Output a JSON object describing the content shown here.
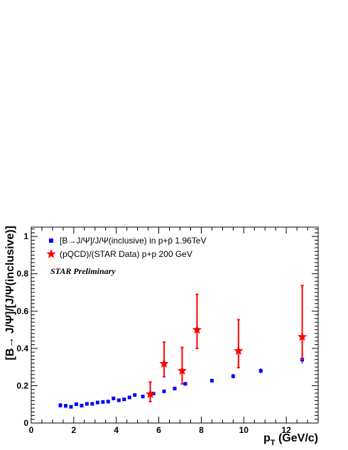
{
  "chart_data": {
    "type": "scatter",
    "title": "",
    "xlabel_main": "p",
    "xlabel_sub": "T",
    "xlabel_unit": " (GeV/c)",
    "ylabel": "[B→ J/Ψ]/[J/Ψ(inclusive)]",
    "xlim": [
      0,
      13.5
    ],
    "ylim": [
      0,
      1.05
    ],
    "x_ticks": [
      0,
      2,
      4,
      6,
      8,
      10,
      12
    ],
    "y_ticks": [
      0,
      0.2,
      0.4,
      0.6,
      0.8,
      1
    ],
    "x_tick_labels": [
      "0",
      "2",
      "4",
      "6",
      "8",
      "10",
      "12"
    ],
    "y_tick_labels": [
      "0",
      "0.2",
      "0.4",
      "0.6",
      "0.8",
      "1"
    ],
    "grid": false,
    "legend_position": "top-left",
    "annotation": "STAR Preliminary",
    "series": [
      {
        "name": "[B→J/Ψ]/J/Ψ(inclusive) in p+p̄ 1.96TeV",
        "marker": "square",
        "color": "#0000ff",
        "x": [
          1.37,
          1.62,
          1.87,
          2.12,
          2.37,
          2.62,
          2.87,
          3.12,
          3.37,
          3.62,
          3.87,
          4.12,
          4.37,
          4.62,
          4.87,
          5.25,
          5.75,
          6.25,
          6.75,
          7.25,
          8.5,
          9.5,
          10.8,
          12.75
        ],
        "y": [
          0.095,
          0.092,
          0.087,
          0.101,
          0.093,
          0.103,
          0.103,
          0.11,
          0.113,
          0.115,
          0.132,
          0.122,
          0.127,
          0.137,
          0.15,
          0.142,
          0.158,
          0.17,
          0.185,
          0.21,
          0.227,
          0.251,
          0.28,
          0.34
        ],
        "yerr": [
          0.012,
          0.01,
          0.008,
          0.01,
          0.007,
          0.006,
          0.006,
          0.006,
          0.006,
          0.006,
          0.006,
          0.006,
          0.006,
          0.006,
          0.006,
          0.006,
          0.006,
          0.006,
          0.006,
          0.007,
          0.008,
          0.012,
          0.013,
          0.02
        ]
      },
      {
        "name": "(pQCD)/(STAR Data) p+p 200 GeV",
        "marker": "star",
        "color": "#ff0000",
        "x": [
          5.6,
          6.25,
          7.1,
          7.8,
          9.75,
          12.75
        ],
        "y": [
          0.155,
          0.318,
          0.28,
          0.5,
          0.387,
          0.462
        ],
        "yerr_up": [
          0.065,
          0.115,
          0.125,
          0.19,
          0.167,
          0.275
        ],
        "yerr_down": [
          0.04,
          0.07,
          0.07,
          0.1,
          0.09,
          0.12
        ]
      }
    ]
  }
}
